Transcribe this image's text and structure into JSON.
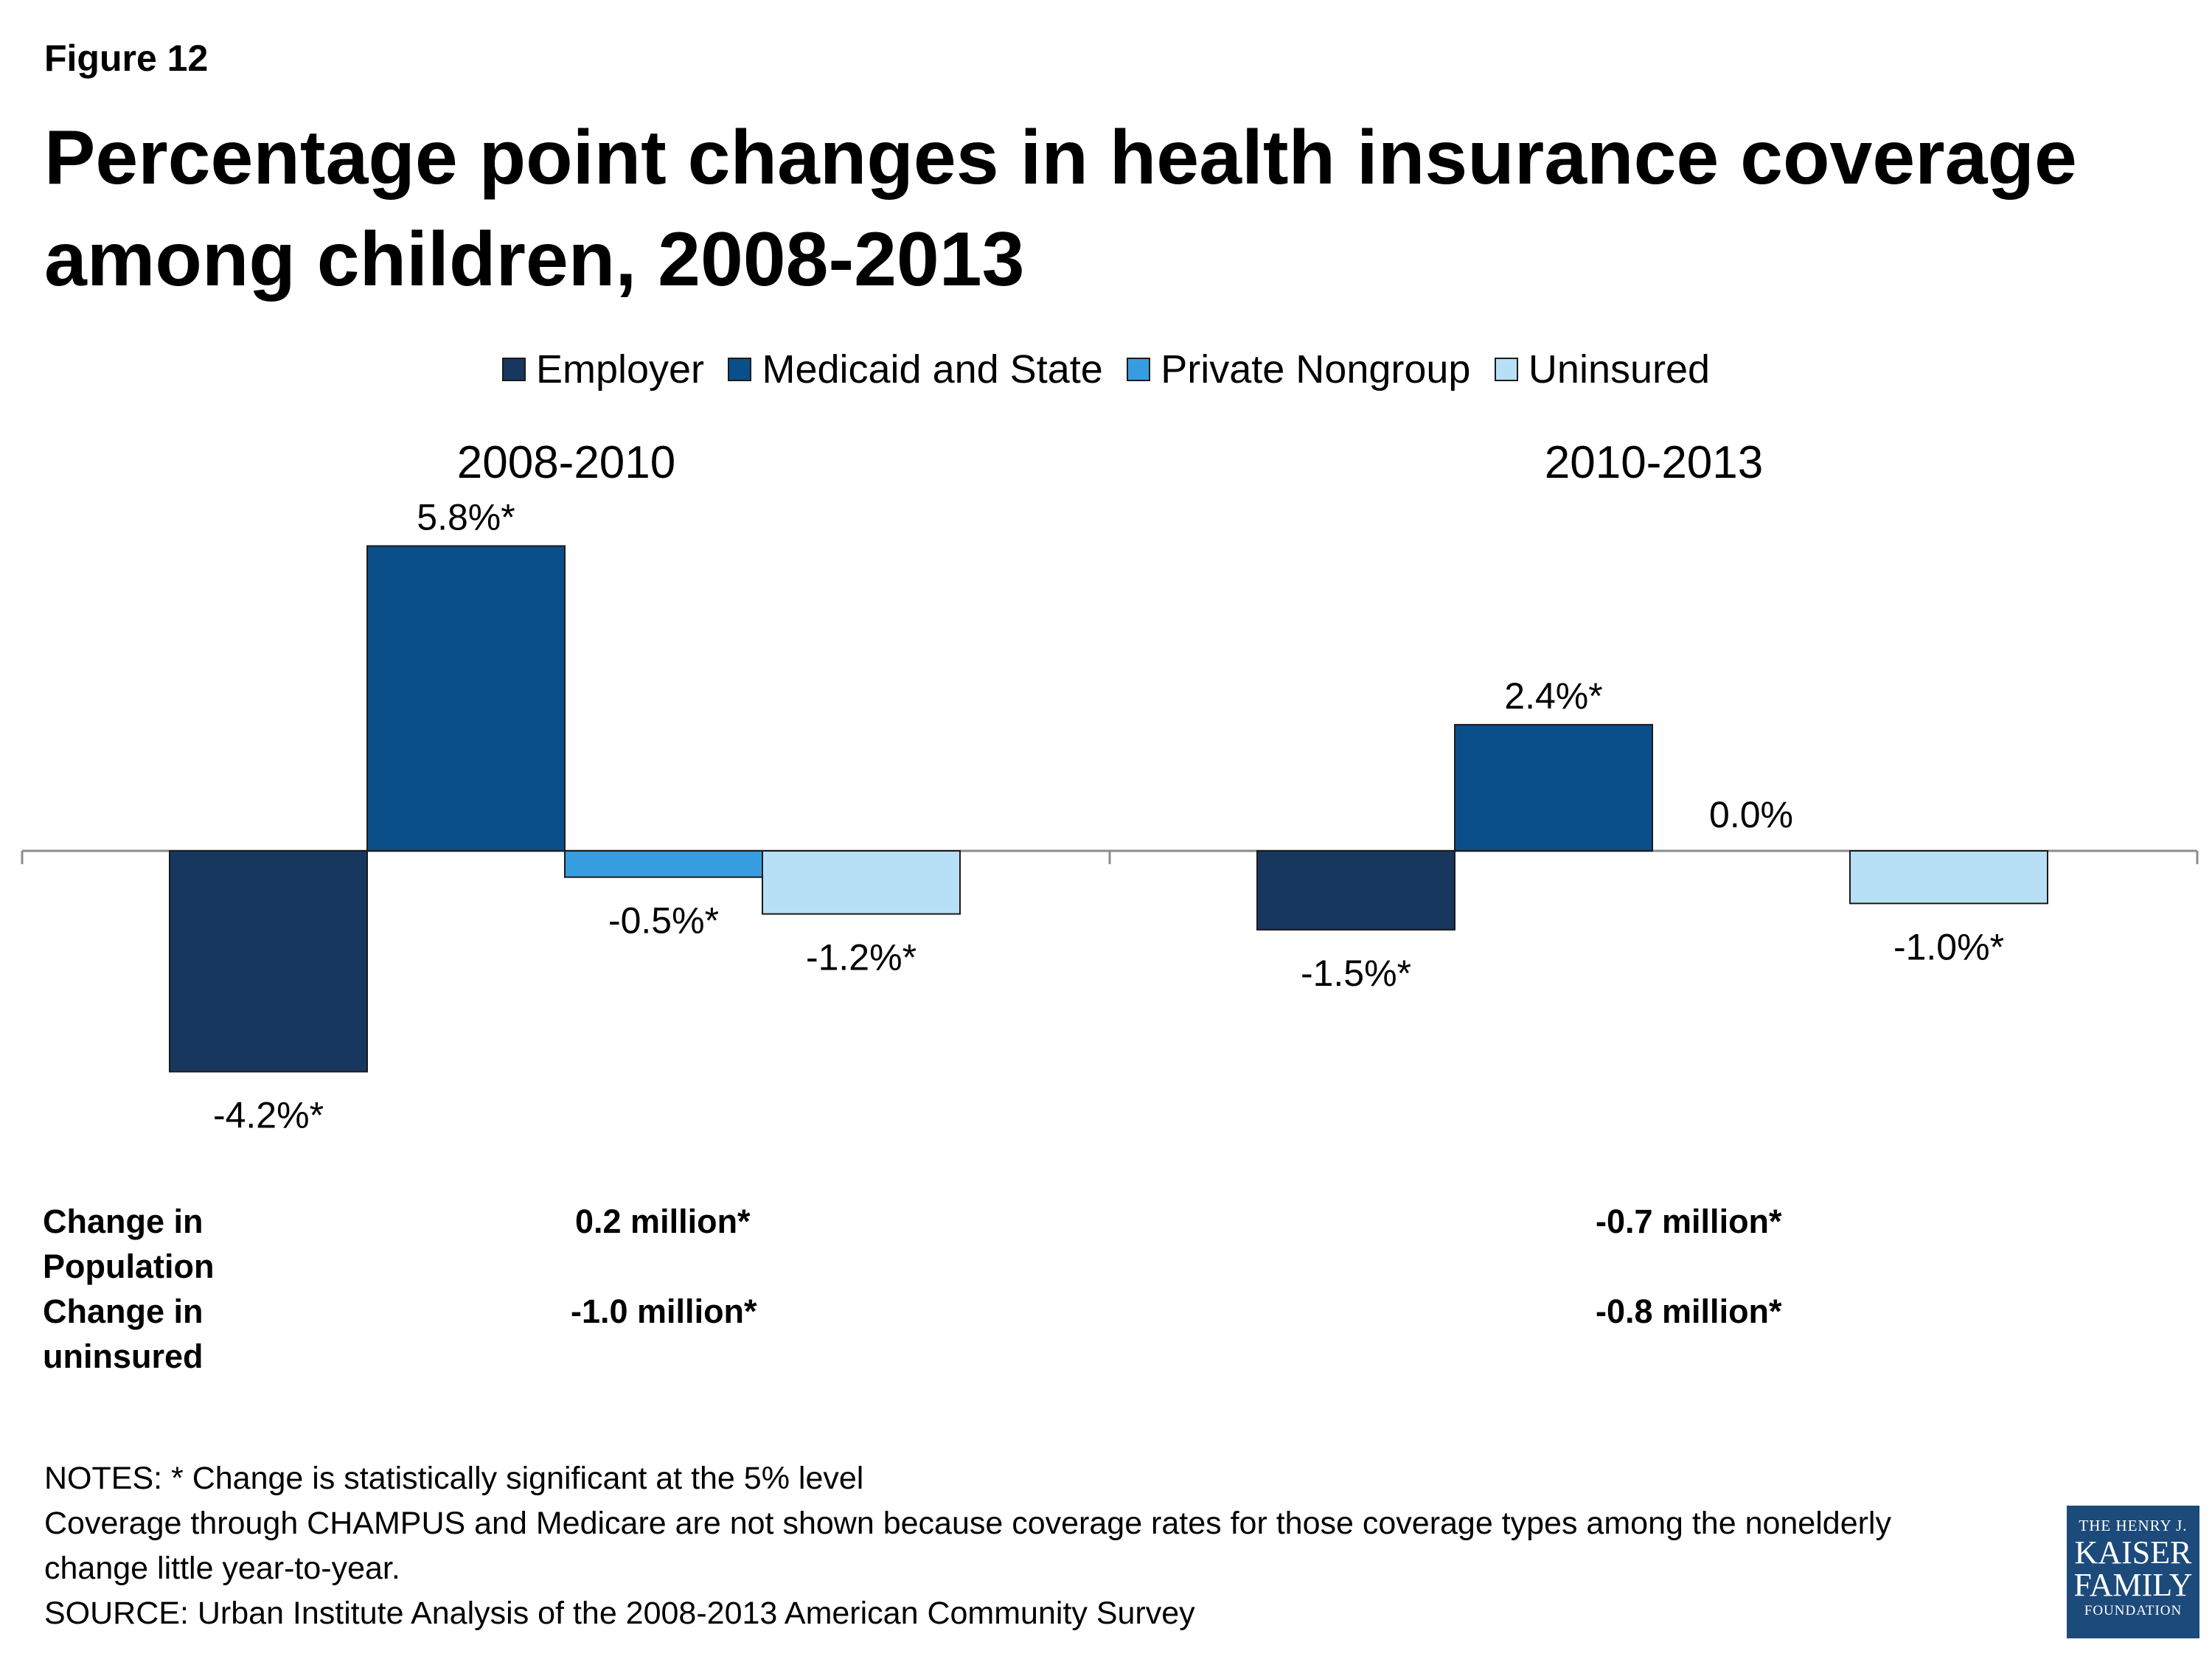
{
  "figure_label": "Figure 12",
  "title": "Percentage point changes in health insurance coverage among children, 2008-2013",
  "colors": {
    "employer": "#17375e",
    "medicaid": "#0a4f8a",
    "private": "#369ee0",
    "uninsured": "#b7dff5",
    "axis": "#8c8c8c"
  },
  "chart_data": {
    "type": "bar",
    "title": "Percentage point changes in health insurance coverage among children, 2008-2013",
    "xlabel": "",
    "ylabel": "",
    "legend_position": "top-center",
    "grid": false,
    "categories": [
      "2008-2010",
      "2010-2013"
    ],
    "series": [
      {
        "name": "Employer",
        "values": [
          -4.2,
          -1.5
        ],
        "labels": [
          "-4.2%*",
          "-1.5%*"
        ]
      },
      {
        "name": "Medicaid and State",
        "values": [
          5.8,
          2.4
        ],
        "labels": [
          "5.8%*",
          "2.4%*"
        ]
      },
      {
        "name": "Private Nongroup",
        "values": [
          -0.5,
          0.0
        ],
        "labels": [
          "-0.5%*",
          "0.0%"
        ]
      },
      {
        "name": "Uninsured",
        "values": [
          -1.2,
          -1.0
        ],
        "labels": [
          "-1.2%*",
          "-1.0%*"
        ]
      }
    ]
  },
  "population_row": {
    "label_line1": "Change in",
    "label_line2": "Population",
    "values": [
      "0.2 million*",
      "-0.7 million*"
    ]
  },
  "uninsured_row": {
    "label_line1": "Change in",
    "label_line2": "uninsured",
    "values": [
      "-1.0 million*",
      "-0.8 million*"
    ]
  },
  "notes": [
    "NOTES: * Change is statistically significant at the 5% level",
    "Coverage through CHAMPUS and Medicare are not shown because coverage rates for those coverage types among the nonelderly",
    "change little year-to-year.",
    "SOURCE: Urban Institute Analysis of the 2008-2013 American Community Survey"
  ],
  "logo": {
    "line1": "THE HENRY J.",
    "line2": "KAISER",
    "line3": "FAMILY",
    "line4": "FOUNDATION"
  }
}
